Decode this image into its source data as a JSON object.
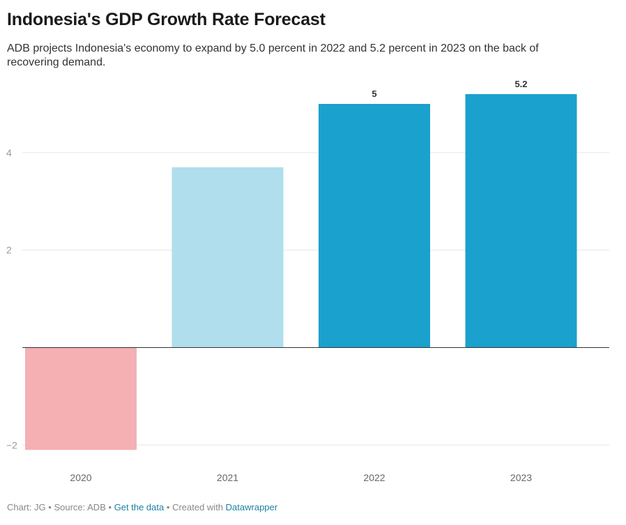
{
  "title": "Indonesia's GDP Growth Rate Forecast",
  "subtitle": "ADB projects Indonesia's economy to expand by 5.0 percent in 2022 and 5.2 percent in 2023 on the back of recovering demand.",
  "footer": {
    "chart_credit": "Chart: JG",
    "separator": "•",
    "source": "Source: ADB",
    "get_data": "Get the data",
    "created_with": "Created with",
    "tool": "Datawrapper"
  },
  "colors": {
    "negative": "#f4b0b3",
    "estimate": "#b0deec",
    "forecast": "#1ba1cd",
    "gridline": "#e6e6e6",
    "baseline": "#333333",
    "tick_label": "#999999",
    "value_label": "#333333"
  },
  "chart_data": {
    "type": "bar",
    "categories": [
      "2020",
      "2021",
      "2022",
      "2023"
    ],
    "values": [
      -2.1,
      3.7,
      5.0,
      5.2
    ],
    "value_labels": [
      "",
      "",
      "5",
      "5.2"
    ],
    "bar_colors": [
      "#f4b0b3",
      "#b0deec",
      "#1ba1cd",
      "#1ba1cd"
    ],
    "y_ticks": [
      {
        "value": 4,
        "label": "4"
      },
      {
        "value": 2,
        "label": "2"
      },
      {
        "value": -2,
        "label": "−2"
      }
    ],
    "ylim": [
      -2.1,
      5.2
    ],
    "grid": true
  }
}
